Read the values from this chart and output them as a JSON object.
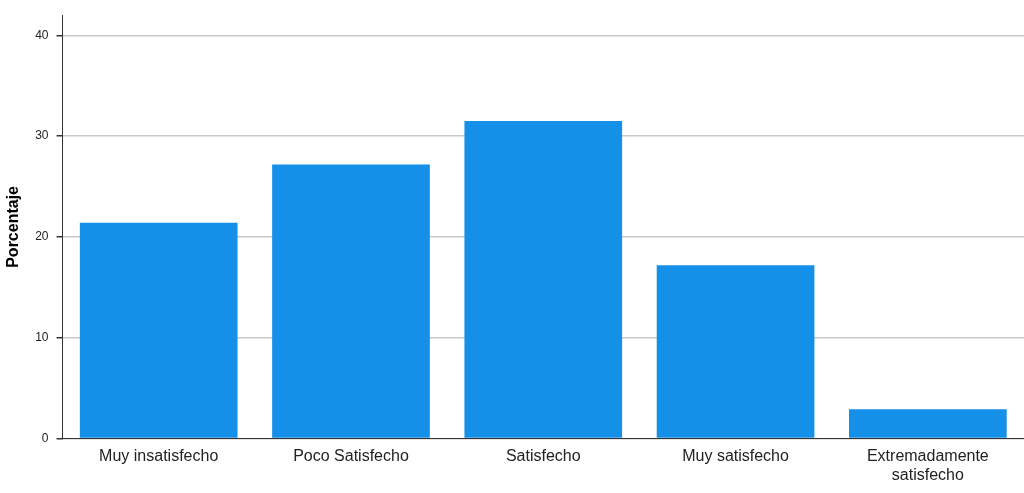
{
  "chart_data": {
    "type": "bar",
    "ylabel": "Porcentaje",
    "categories": [
      "Muy insatisfecho",
      "Poco Satisfecho",
      "Satisfecho",
      "Muy satisfecho",
      "Extremadamente satisfecho"
    ],
    "values": [
      21.4,
      27.2,
      31.5,
      17.2,
      2.9
    ],
    "color": "#1490e8",
    "ylim": [
      0,
      42
    ],
    "yticks": [
      0,
      10,
      20,
      30,
      40
    ],
    "grid": "y",
    "legend": false
  }
}
